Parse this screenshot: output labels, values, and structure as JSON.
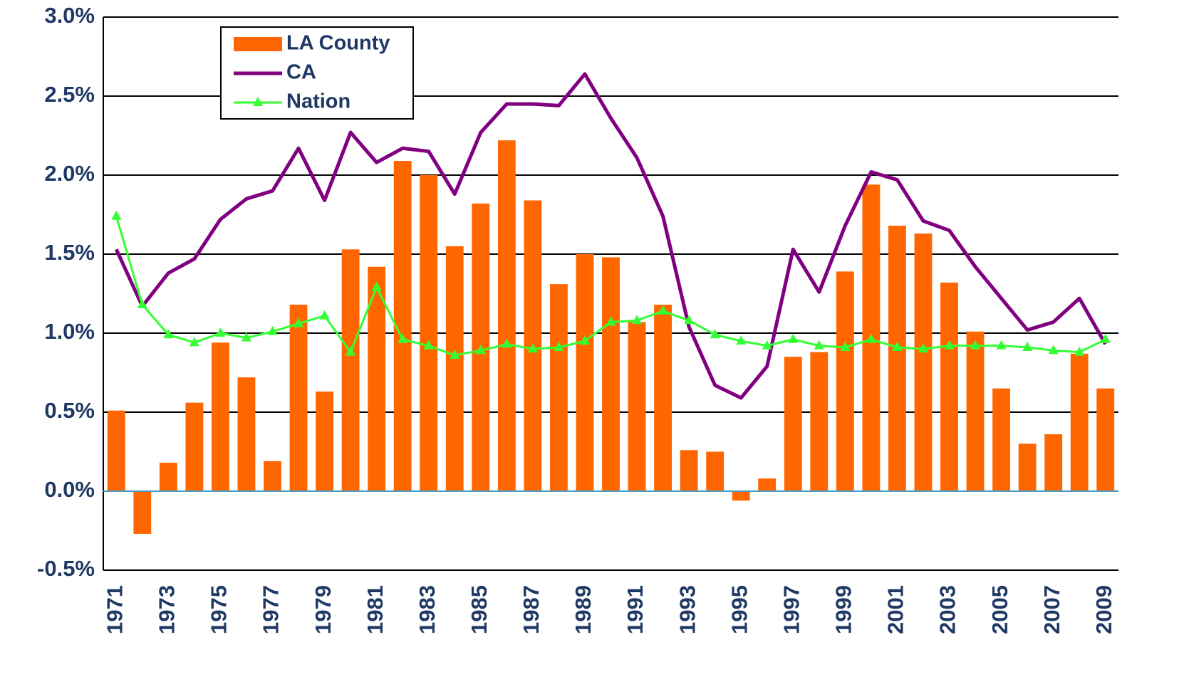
{
  "chart_data": {
    "type": "bar",
    "categories": [
      "1971",
      null,
      "1973",
      null,
      "1975",
      null,
      "1977",
      null,
      "1979",
      null,
      "1981",
      null,
      "1983",
      null,
      "1985",
      null,
      "1987",
      null,
      "1989",
      null,
      "1991",
      null,
      "1993",
      null,
      "1995",
      null,
      "1997",
      null,
      "1999",
      null,
      "2001",
      null,
      "2003",
      null,
      "2005",
      null,
      "2007",
      null,
      "2009"
    ],
    "series": [
      {
        "name": "LA County",
        "type": "bar",
        "color": "#ff6600",
        "values": [
          0.51,
          -0.27,
          0.18,
          0.56,
          0.94,
          0.72,
          0.19,
          1.18,
          0.63,
          1.53,
          1.42,
          2.09,
          2.0,
          1.55,
          1.82,
          2.22,
          1.84,
          1.31,
          1.5,
          1.48,
          1.07,
          1.18,
          0.26,
          0.25,
          -0.06,
          0.08,
          0.85,
          0.88,
          1.39,
          1.94,
          1.68,
          1.63,
          1.32,
          1.01,
          0.65,
          0.3,
          0.36,
          0.87,
          0.65
        ]
      },
      {
        "name": "CA",
        "type": "line",
        "color": "#800080",
        "values": [
          1.53,
          1.17,
          1.38,
          1.47,
          1.72,
          1.85,
          1.9,
          2.17,
          1.84,
          2.27,
          2.08,
          2.17,
          2.15,
          1.88,
          2.27,
          2.45,
          2.45,
          2.44,
          2.64,
          2.36,
          2.11,
          1.74,
          1.04,
          0.67,
          0.59,
          0.79,
          1.53,
          1.26,
          1.68,
          2.02,
          1.97,
          1.71,
          1.65,
          1.42,
          1.22,
          1.02,
          1.07,
          1.22,
          0.93
        ]
      },
      {
        "name": "Nation",
        "type": "line",
        "marker": "triangle",
        "color": "#33ff33",
        "values": [
          1.74,
          1.18,
          0.99,
          0.94,
          1.0,
          0.97,
          1.01,
          1.06,
          1.11,
          0.88,
          1.29,
          0.96,
          0.92,
          0.86,
          0.89,
          0.93,
          0.9,
          0.91,
          0.95,
          1.07,
          1.08,
          1.14,
          1.08,
          0.99,
          0.95,
          0.92,
          0.96,
          0.92,
          0.91,
          0.96,
          0.91,
          0.9,
          0.92,
          0.92,
          0.92,
          0.91,
          0.89,
          0.88,
          0.96
        ]
      }
    ],
    "ylim": [
      -0.5,
      3.0
    ],
    "yticks": [
      {
        "value": -0.5,
        "label": "-0.5%"
      },
      {
        "value": 0,
        "label": "0.0%"
      },
      {
        "value": 0.5,
        "label": "0.5%"
      },
      {
        "value": 1.0,
        "label": "1.0%"
      },
      {
        "value": 1.5,
        "label": "1.5%"
      },
      {
        "value": 2.0,
        "label": "2.0%"
      },
      {
        "value": 2.5,
        "label": "2.5%"
      },
      {
        "value": 3.0,
        "label": "3.0%"
      }
    ],
    "grid": true,
    "legend": "upper left"
  }
}
